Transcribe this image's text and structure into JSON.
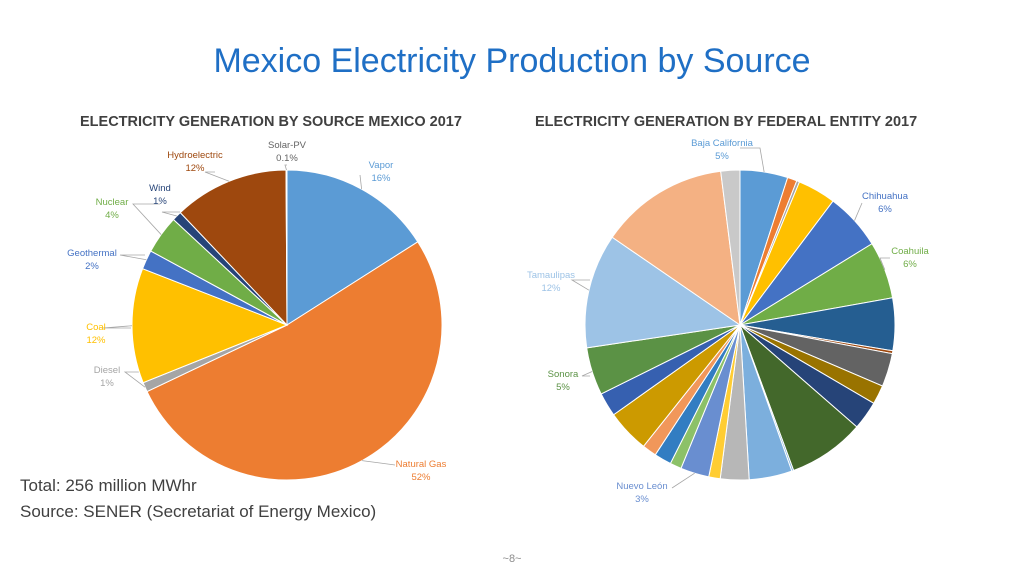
{
  "slide": {
    "title": "Mexico Electricity Production by Source",
    "total": "Total: 256 million MWhr",
    "source": "Source: SENER (Secretariat of Energy Mexico)",
    "page_number": "~8~"
  },
  "chart_data": [
    {
      "type": "pie",
      "title": "ELECTRICITY GENERATION BY SOURCE MEXICO 2017",
      "slices": [
        {
          "label": "Vapor",
          "value": 16,
          "display": "16%",
          "color": "#5b9bd5"
        },
        {
          "label": "Natural Gas",
          "value": 52,
          "display": "52%",
          "color": "#ed7d31"
        },
        {
          "label": "Diesel",
          "value": 1,
          "display": "1%",
          "color": "#a5a5a5"
        },
        {
          "label": "Coal",
          "value": 12,
          "display": "12%",
          "color": "#ffc000"
        },
        {
          "label": "Geothermal",
          "value": 2,
          "display": "2%",
          "color": "#4472c4"
        },
        {
          "label": "Nuclear",
          "value": 4,
          "display": "4%",
          "color": "#70ad47"
        },
        {
          "label": "Wind",
          "value": 1,
          "display": "1%",
          "color": "#264478"
        },
        {
          "label": "Hydroelectric",
          "value": 12,
          "display": "12%",
          "color": "#9e480e"
        },
        {
          "label": "Solar-PV",
          "value": 0.1,
          "display": "0.1%",
          "color": "#636363"
        }
      ]
    },
    {
      "type": "pie",
      "title": "ELECTRICITY GENERATION BY FEDERAL ENTITY 2017",
      "slices": [
        {
          "label": "Baja California",
          "value": 5,
          "display": "5%",
          "color": "#5b9bd5"
        },
        {
          "label": "",
          "value": 1,
          "color": "#ed7d31"
        },
        {
          "label": "",
          "value": 0.3,
          "color": "#a5a5a5"
        },
        {
          "label": "",
          "value": 4,
          "color": "#ffc000"
        },
        {
          "label": "Chihuahua",
          "value": 6,
          "display": "6%",
          "color": "#4472c4"
        },
        {
          "label": "Coahuila",
          "value": 6,
          "display": "6%",
          "color": "#70ad47"
        },
        {
          "label": "",
          "value": 5.5,
          "color": "#255e91"
        },
        {
          "label": "",
          "value": 0.3,
          "color": "#9e480e"
        },
        {
          "label": "",
          "value": 3.5,
          "color": "#636363"
        },
        {
          "label": "",
          "value": 2,
          "color": "#997300"
        },
        {
          "label": "",
          "value": 3,
          "color": "#264478"
        },
        {
          "label": "",
          "value": 8,
          "color": "#43682b"
        },
        {
          "label": "",
          "value": 0.2,
          "color": "#7cafdd"
        },
        {
          "label": "",
          "value": 4.5,
          "color": "#7cafdd"
        },
        {
          "label": "",
          "value": 3,
          "color": "#b7b7b7"
        },
        {
          "label": "",
          "value": 1.2,
          "color": "#ffcd33"
        },
        {
          "label": "Nuevo León",
          "value": 3,
          "display": "3%",
          "color": "#698ed0"
        },
        {
          "label": "",
          "value": 1.2,
          "color": "#8cc168"
        },
        {
          "label": "",
          "value": 1.8,
          "color": "#327dc2"
        },
        {
          "label": "",
          "value": 1.5,
          "color": "#f1975a"
        },
        {
          "label": "",
          "value": 4.5,
          "color": "#cc9a00"
        },
        {
          "label": "",
          "value": 2.5,
          "color": "#3660b0"
        },
        {
          "label": "Sonora",
          "value": 5,
          "display": "5%",
          "color": "#5b9245"
        },
        {
          "label": "Tamaulipas",
          "value": 12,
          "display": "12%",
          "color": "#9dc3e6"
        },
        {
          "label": "",
          "value": 13.5,
          "color": "#f4b183"
        },
        {
          "label": "",
          "value": 2,
          "color": "#c9c9c9"
        }
      ]
    }
  ]
}
